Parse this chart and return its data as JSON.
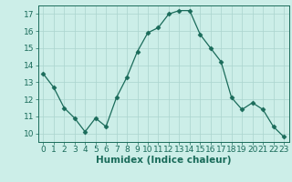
{
  "x": [
    0,
    1,
    2,
    3,
    4,
    5,
    6,
    7,
    8,
    9,
    10,
    11,
    12,
    13,
    14,
    15,
    16,
    17,
    18,
    19,
    20,
    21,
    22,
    23
  ],
  "y": [
    13.5,
    12.7,
    11.5,
    10.9,
    10.1,
    10.9,
    10.4,
    12.1,
    13.3,
    14.8,
    15.9,
    16.2,
    17.0,
    17.2,
    17.2,
    15.8,
    15.0,
    14.2,
    12.1,
    11.4,
    11.8,
    11.4,
    10.4,
    9.8
  ],
  "line_color": "#1a6b5a",
  "marker": "D",
  "marker_size": 2.5,
  "bg_color": "#cceee8",
  "grid_color": "#aad4ce",
  "xlabel": "Humidex (Indice chaleur)",
  "ylim": [
    9.5,
    17.5
  ],
  "xlim": [
    -0.5,
    23.5
  ],
  "yticks": [
    10,
    11,
    12,
    13,
    14,
    15,
    16,
    17
  ],
  "xticks": [
    0,
    1,
    2,
    3,
    4,
    5,
    6,
    7,
    8,
    9,
    10,
    11,
    12,
    13,
    14,
    15,
    16,
    17,
    18,
    19,
    20,
    21,
    22,
    23
  ],
  "axis_color": "#1a6b5a",
  "label_fontsize": 7.5,
  "tick_fontsize": 6.5
}
